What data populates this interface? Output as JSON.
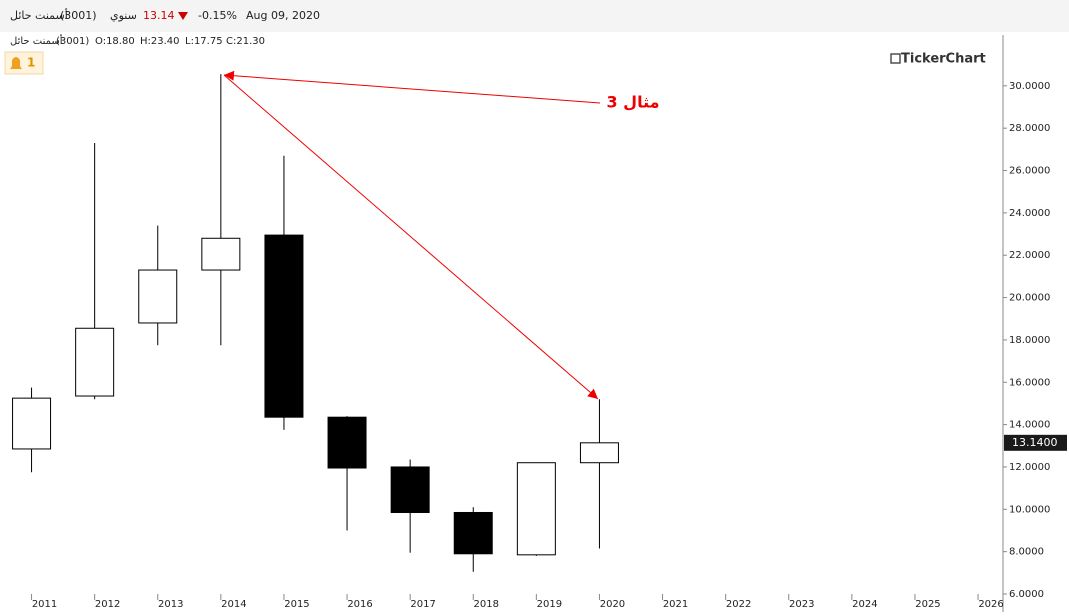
{
  "header": {
    "name": "أسمنت حائل",
    "code": "(3001)",
    "period": "سنوي",
    "price": "13.14",
    "change": "-0.15%",
    "date": "Aug 09, 2020"
  },
  "legend_line": {
    "name": "أسمنت حائل",
    "code": "(3001)",
    "open": "O:18.80",
    "high": "H:23.40",
    "low": "L:17.75",
    "close": "C:21.30"
  },
  "alerts": "1",
  "logo": "TickerChart",
  "chart_data": {
    "type": "candlestick",
    "annotation": "مثال 3",
    "categories": [
      "2011",
      "2012",
      "2013",
      "2014",
      "2015",
      "2016",
      "2017",
      "2018",
      "2019",
      "2020",
      "2021",
      "2022",
      "2023",
      "2024",
      "2025",
      "2026"
    ],
    "open": [
      12.85,
      15.35,
      18.8,
      21.3,
      22.95,
      14.35,
      12.0,
      9.85,
      7.85,
      12.2,
      null,
      null,
      null,
      null,
      null,
      null
    ],
    "high": [
      15.75,
      27.3,
      23.4,
      30.55,
      26.7,
      14.4,
      12.35,
      10.1,
      12.2,
      15.2,
      null,
      null,
      null,
      null,
      null,
      null
    ],
    "low": [
      11.75,
      15.2,
      17.75,
      17.75,
      13.75,
      9.0,
      7.95,
      7.05,
      7.8,
      8.15,
      null,
      null,
      null,
      null,
      null,
      null
    ],
    "close": [
      15.25,
      18.55,
      21.3,
      22.8,
      14.35,
      11.95,
      9.85,
      7.9,
      12.2,
      13.14,
      null,
      null,
      null,
      null,
      null,
      null
    ],
    "up_color": "#ffffff",
    "down_color": "#000000",
    "edge_color": "#000000",
    "ylim": [
      5.15,
      32.4
    ],
    "yticks": [
      {
        "value": 6,
        "label": "6.0000"
      },
      {
        "value": 8,
        "label": "8.0000"
      },
      {
        "value": 10,
        "label": "10.0000"
      },
      {
        "value": 12,
        "label": "12.0000"
      },
      {
        "value": 14,
        "label": "14.0000"
      },
      {
        "value": 16,
        "label": "16.0000"
      },
      {
        "value": 18,
        "label": "18.0000"
      },
      {
        "value": 20,
        "label": "20.0000"
      },
      {
        "value": 22,
        "label": "22.0000"
      },
      {
        "value": 24,
        "label": "24.0000"
      },
      {
        "value": 26,
        "label": "26.0000"
      },
      {
        "value": 28,
        "label": "28.0000"
      },
      {
        "value": 30,
        "label": "30.0000"
      }
    ],
    "last_value": {
      "value": 13.14,
      "label": "13.1400"
    }
  }
}
